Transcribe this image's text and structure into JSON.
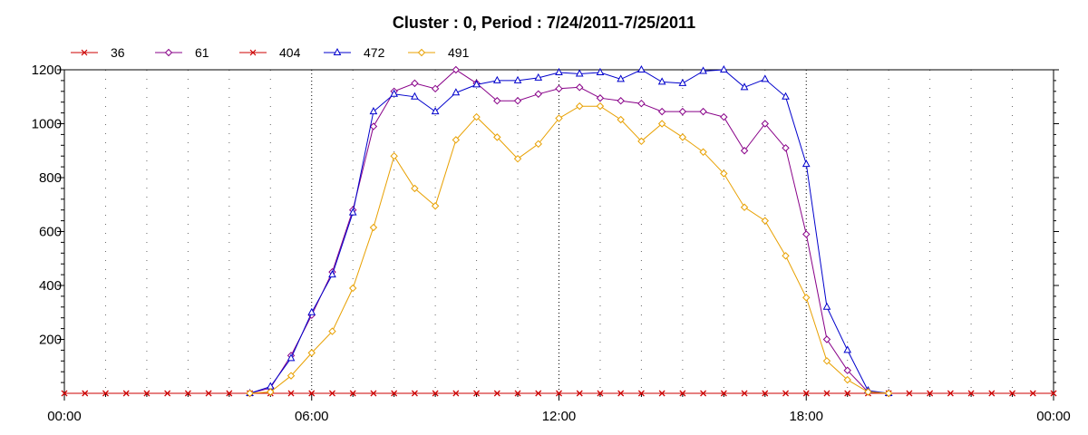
{
  "chart_data": {
    "type": "line",
    "title": "Cluster : 0, Period : 7/24/2011-7/25/2011",
    "xlabel": "",
    "ylabel": "",
    "x_unit": "hours",
    "xlim": [
      0,
      24
    ],
    "ylim": [
      0,
      1200
    ],
    "x_ticks": [
      0,
      6,
      12,
      18,
      24
    ],
    "x_tick_labels": [
      "00:00",
      "06:00",
      "12:00",
      "18:00",
      "00:00"
    ],
    "y_ticks": [
      200,
      400,
      600,
      800,
      1000,
      1200
    ],
    "y_tick_labels": [
      "200",
      "400",
      "600",
      "800",
      "1000",
      "1200"
    ],
    "grid": "vertical dotted",
    "legend_position": "top-left",
    "x": [
      0,
      0.5,
      1,
      1.5,
      2,
      2.5,
      3,
      3.5,
      4,
      4.5,
      5,
      5.5,
      6,
      6.5,
      7,
      7.5,
      8,
      8.5,
      9,
      9.5,
      10,
      10.5,
      11,
      11.5,
      12,
      12.5,
      13,
      13.5,
      14,
      14.5,
      15,
      15.5,
      16,
      16.5,
      17,
      17.5,
      18,
      18.5,
      19,
      19.5,
      20,
      20.5,
      21,
      21.5,
      22,
      22.5,
      23,
      23.5,
      24
    ],
    "series": [
      {
        "name": "36",
        "color": "#cc0000",
        "marker": "x",
        "values": [
          0,
          0,
          0,
          0,
          0,
          0,
          0,
          0,
          0,
          0,
          0,
          0,
          0,
          0,
          0,
          0,
          0,
          0,
          0,
          0,
          0,
          0,
          0,
          0,
          0,
          0,
          0,
          0,
          0,
          0,
          0,
          0,
          0,
          0,
          0,
          0,
          0,
          0,
          0,
          0,
          0,
          0,
          0,
          0,
          0,
          0,
          0,
          0,
          0
        ]
      },
      {
        "name": "61",
        "color": "#880088",
        "marker": "diamond",
        "values": [
          null,
          null,
          null,
          null,
          null,
          null,
          null,
          null,
          null,
          0,
          20,
          140,
          290,
          450,
          680,
          990,
          1120,
          1150,
          1130,
          1200,
          1150,
          1085,
          1085,
          1110,
          1130,
          1135,
          1095,
          1085,
          1075,
          1045,
          1045,
          1045,
          1025,
          900,
          1000,
          910,
          590,
          200,
          85,
          5,
          0,
          null,
          null,
          null,
          null,
          null,
          null,
          null,
          null
        ]
      },
      {
        "name": "404",
        "color": "#cc0000",
        "marker": "x",
        "values": [
          0,
          0,
          0,
          0,
          0,
          0,
          0,
          0,
          0,
          0,
          0,
          0,
          0,
          0,
          0,
          0,
          0,
          0,
          0,
          0,
          0,
          0,
          0,
          0,
          0,
          0,
          0,
          0,
          0,
          0,
          0,
          0,
          0,
          0,
          0,
          0,
          0,
          0,
          0,
          0,
          0,
          0,
          0,
          0,
          0,
          0,
          0,
          0,
          0
        ]
      },
      {
        "name": "472",
        "color": "#0000cc",
        "marker": "triangle",
        "values": [
          null,
          null,
          null,
          null,
          null,
          null,
          null,
          null,
          null,
          0,
          25,
          130,
          300,
          440,
          670,
          1045,
          1110,
          1100,
          1045,
          1115,
          1145,
          1160,
          1160,
          1170,
          1190,
          1185,
          1190,
          1165,
          1200,
          1155,
          1150,
          1195,
          1200,
          1135,
          1165,
          1100,
          850,
          320,
          160,
          10,
          0,
          null,
          null,
          null,
          null,
          null,
          null,
          null,
          null
        ]
      },
      {
        "name": "491",
        "color": "#e8a000",
        "marker": "diamond",
        "values": [
          null,
          null,
          null,
          null,
          null,
          null,
          null,
          null,
          null,
          0,
          5,
          65,
          150,
          230,
          390,
          615,
          880,
          760,
          695,
          940,
          1025,
          950,
          870,
          925,
          1020,
          1065,
          1065,
          1015,
          935,
          1000,
          950,
          895,
          815,
          690,
          640,
          510,
          355,
          120,
          50,
          5,
          0,
          null,
          null,
          null,
          null,
          null,
          null,
          null,
          null
        ]
      }
    ]
  }
}
